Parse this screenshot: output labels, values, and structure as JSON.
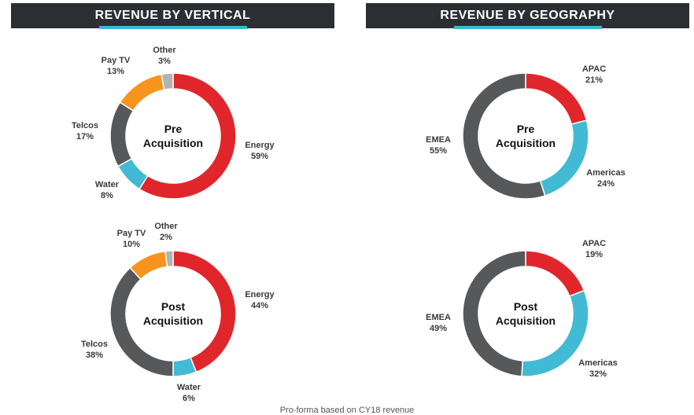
{
  "headers": {
    "vertical": "REVENUE BY VERTICAL",
    "geography": "REVENUE BY GEOGRAPHY"
  },
  "footer": "Pro-forma based on CY18 revenue",
  "colors": {
    "red": "#e0262b",
    "gray": "#57585a",
    "blue": "#43bad4",
    "orange": "#f7941d",
    "light": "#b3b3b3"
  },
  "chart_data": [
    {
      "type": "pie",
      "id": "vertical-pre",
      "title": "",
      "center": [
        "Pre",
        "Acquisition"
      ],
      "slices": [
        {
          "label": "Energy",
          "value": 59,
          "text": "59%",
          "color": "#e0262b"
        },
        {
          "label": "Water",
          "value": 8,
          "text": "8%",
          "color": "#43bad4"
        },
        {
          "label": "Telcos",
          "value": 17,
          "text": "17%",
          "color": "#57585a"
        },
        {
          "label": "Pay TV",
          "value": 13,
          "text": "13%",
          "color": "#f7941d"
        },
        {
          "label": "Other",
          "value": 3,
          "text": "3%",
          "color": "#b3b3b3"
        }
      ]
    },
    {
      "type": "pie",
      "id": "vertical-post",
      "title": "",
      "center": [
        "Post",
        "Acquisition"
      ],
      "slices": [
        {
          "label": "Energy",
          "value": 44,
          "text": "44%",
          "color": "#e0262b"
        },
        {
          "label": "Water",
          "value": 6,
          "text": "6%",
          "color": "#43bad4"
        },
        {
          "label": "Telcos",
          "value": 38,
          "text": "38%",
          "color": "#57585a"
        },
        {
          "label": "Pay TV",
          "value": 10,
          "text": "10%",
          "color": "#f7941d"
        },
        {
          "label": "Other",
          "value": 2,
          "text": "2%",
          "color": "#b3b3b3"
        }
      ]
    },
    {
      "type": "pie",
      "id": "geo-pre",
      "title": "",
      "center": [
        "Pre",
        "Acquisition"
      ],
      "slices": [
        {
          "label": "APAC",
          "value": 21,
          "text": "21%",
          "color": "#e0262b"
        },
        {
          "label": "Americas",
          "value": 24,
          "text": "24%",
          "color": "#43bad4"
        },
        {
          "label": "EMEA",
          "value": 55,
          "text": "55%",
          "color": "#57585a"
        }
      ]
    },
    {
      "type": "pie",
      "id": "geo-post",
      "title": "",
      "center": [
        "Post",
        "Acquisition"
      ],
      "slices": [
        {
          "label": "APAC",
          "value": 19,
          "text": "19%",
          "color": "#e0262b"
        },
        {
          "label": "Americas",
          "value": 32,
          "text": "32%",
          "color": "#43bad4"
        },
        {
          "label": "EMEA",
          "value": 49,
          "text": "49%",
          "color": "#57585a"
        }
      ]
    }
  ]
}
